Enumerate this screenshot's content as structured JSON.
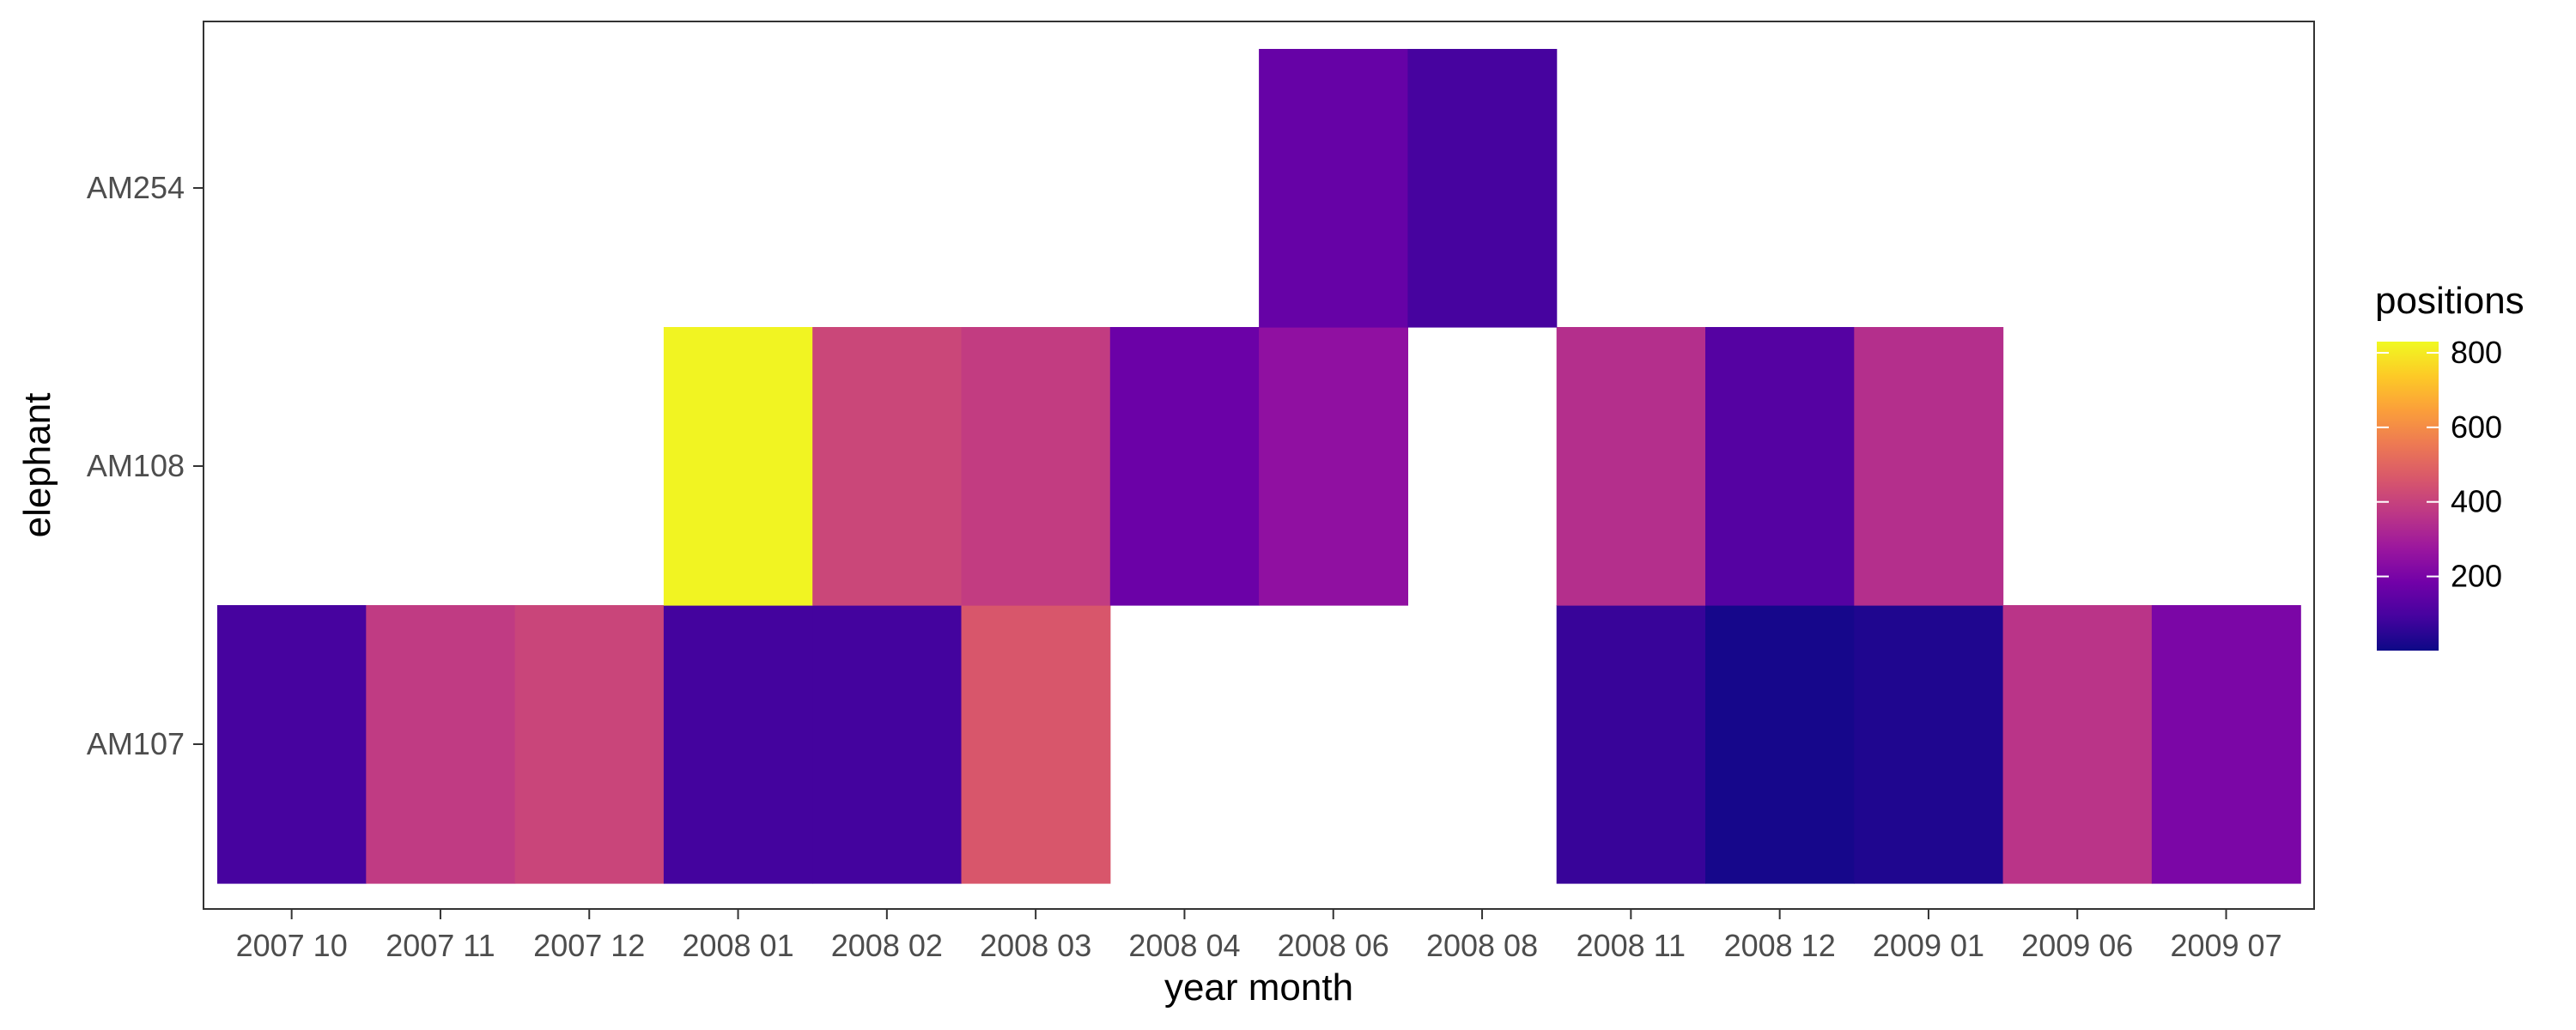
{
  "chart_data": {
    "type": "heatmap",
    "title": "",
    "xlabel": "year month",
    "ylabel": "elephant",
    "x_categories": [
      "2007 10",
      "2007 11",
      "2007 12",
      "2008 01",
      "2008 02",
      "2008 03",
      "2008 04",
      "2008 06",
      "2008 08",
      "2008 11",
      "2008 12",
      "2009 01",
      "2009 06",
      "2009 07"
    ],
    "y_categories": [
      "AM107",
      "AM108",
      "AM254"
    ],
    "cells": [
      {
        "x": "2007 10",
        "y": "AM107",
        "value": 95
      },
      {
        "x": "2007 11",
        "y": "AM107",
        "value": 380
      },
      {
        "x": "2007 12",
        "y": "AM107",
        "value": 410
      },
      {
        "x": "2008 01",
        "y": "AM107",
        "value": 90
      },
      {
        "x": "2008 02",
        "y": "AM107",
        "value": 90
      },
      {
        "x": "2008 03",
        "y": "AM107",
        "value": 460
      },
      {
        "x": "2008 11",
        "y": "AM107",
        "value": 70
      },
      {
        "x": "2008 12",
        "y": "AM107",
        "value": 15
      },
      {
        "x": "2009 01",
        "y": "AM107",
        "value": 30
      },
      {
        "x": "2009 06",
        "y": "AM107",
        "value": 360
      },
      {
        "x": "2009 07",
        "y": "AM107",
        "value": 205
      },
      {
        "x": "2008 01",
        "y": "AM108",
        "value": 820
      },
      {
        "x": "2008 02",
        "y": "AM108",
        "value": 415
      },
      {
        "x": "2008 03",
        "y": "AM108",
        "value": 385
      },
      {
        "x": "2008 04",
        "y": "AM108",
        "value": 170
      },
      {
        "x": "2008 06",
        "y": "AM108",
        "value": 250
      },
      {
        "x": "2008 11",
        "y": "AM108",
        "value": 345
      },
      {
        "x": "2008 12",
        "y": "AM108",
        "value": 125
      },
      {
        "x": "2009 01",
        "y": "AM108",
        "value": 345
      },
      {
        "x": "2008 06",
        "y": "AM254",
        "value": 160
      },
      {
        "x": "2008 08",
        "y": "AM254",
        "value": 95
      }
    ],
    "legend": {
      "title": "positions",
      "ticks": [
        200,
        400,
        600,
        800
      ],
      "min": 1,
      "max": 830,
      "placement": "right",
      "palette": "plasma"
    },
    "grid": false,
    "colors": {
      "panel_border": "#333333",
      "tick_color": "#333333",
      "tick_label": "#4d4d4d",
      "plasma_stops": [
        "#0d0887",
        "#46039f",
        "#7201a8",
        "#9c179e",
        "#bd3786",
        "#d8576b",
        "#ed7953",
        "#fb9f3a",
        "#fdca26",
        "#f0f921"
      ]
    }
  }
}
